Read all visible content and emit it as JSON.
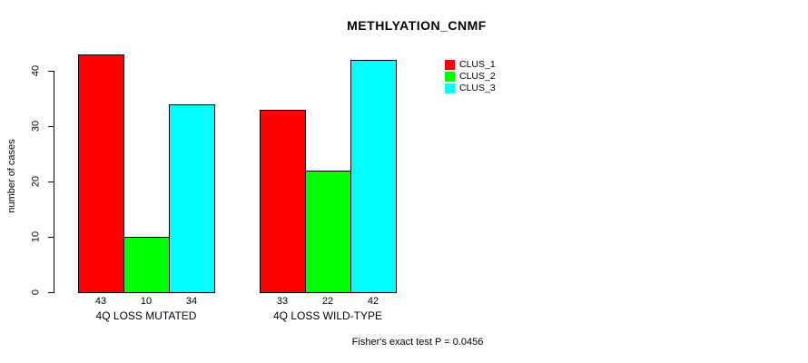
{
  "chart_data": {
    "type": "bar",
    "title": "METHLYATION_CNMF",
    "ylabel": "number of cases",
    "xlabel": "",
    "categories": [
      "4Q LOSS MUTATED",
      "4Q LOSS WILD-TYPE"
    ],
    "series": [
      {
        "name": "CLUS_1",
        "color": "#FF0000",
        "values": [
          43,
          33
        ]
      },
      {
        "name": "CLUS_2",
        "color": "#00FF00",
        "values": [
          10,
          22
        ]
      },
      {
        "name": "CLUS_3",
        "color": "#00FFFF",
        "values": [
          34,
          42
        ]
      }
    ],
    "value_labels_shown": true,
    "ylim": [
      0,
      40
    ],
    "yticks": [
      0,
      10,
      20,
      30,
      40
    ],
    "grid": false,
    "legend_position": "top-right",
    "bar_border_color": "#000000",
    "axis_color": "#000000",
    "text_color": "#000000",
    "background_color": "#FFFFFF",
    "footnote": "Fisher's exact test P = 0.0456"
  }
}
